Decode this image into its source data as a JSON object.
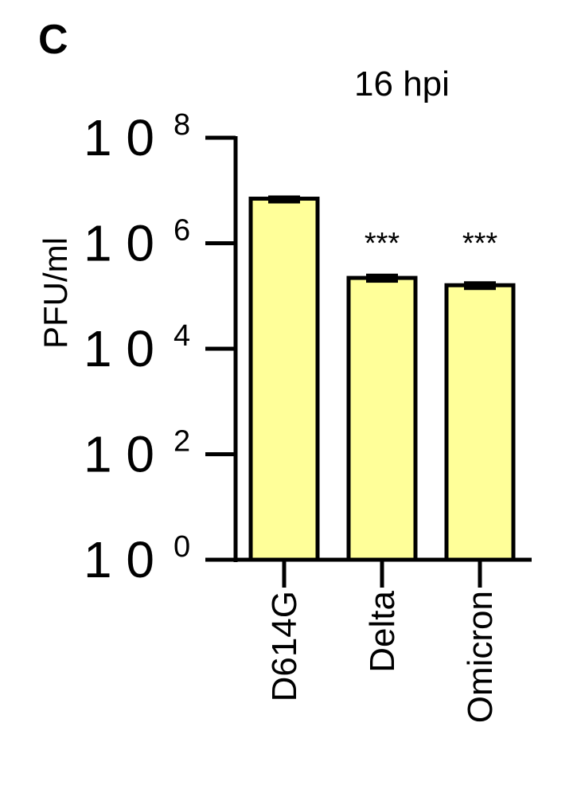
{
  "panel_label": "C",
  "chart_data": {
    "type": "bar",
    "title": "16 hpi",
    "xlabel": "",
    "ylabel": "PFU/ml",
    "yscale": "log10",
    "ylim": [
      1,
      100000000
    ],
    "ytick_mantissa": "1 0",
    "yticks": [
      {
        "value": 1,
        "exponent": "0"
      },
      {
        "value": 100,
        "exponent": "2"
      },
      {
        "value": 10000,
        "exponent": "4"
      },
      {
        "value": 1000000,
        "exponent": "6"
      },
      {
        "value": 100000000,
        "exponent": "8"
      }
    ],
    "categories": [
      "D614G",
      "Delta",
      "Omicron"
    ],
    "values": [
      7000000,
      220000,
      160000
    ],
    "error_low": [
      6200000,
      180000,
      135000
    ],
    "error_high": [
      7800000,
      265000,
      190000
    ],
    "annotations": [
      "",
      "***",
      "***"
    ],
    "colors": {
      "bar_fill": "#ffff99",
      "bar_stroke": "#000000",
      "axis": "#000000",
      "ylabel": "#404040"
    },
    "grid": false,
    "legend": "none"
  }
}
